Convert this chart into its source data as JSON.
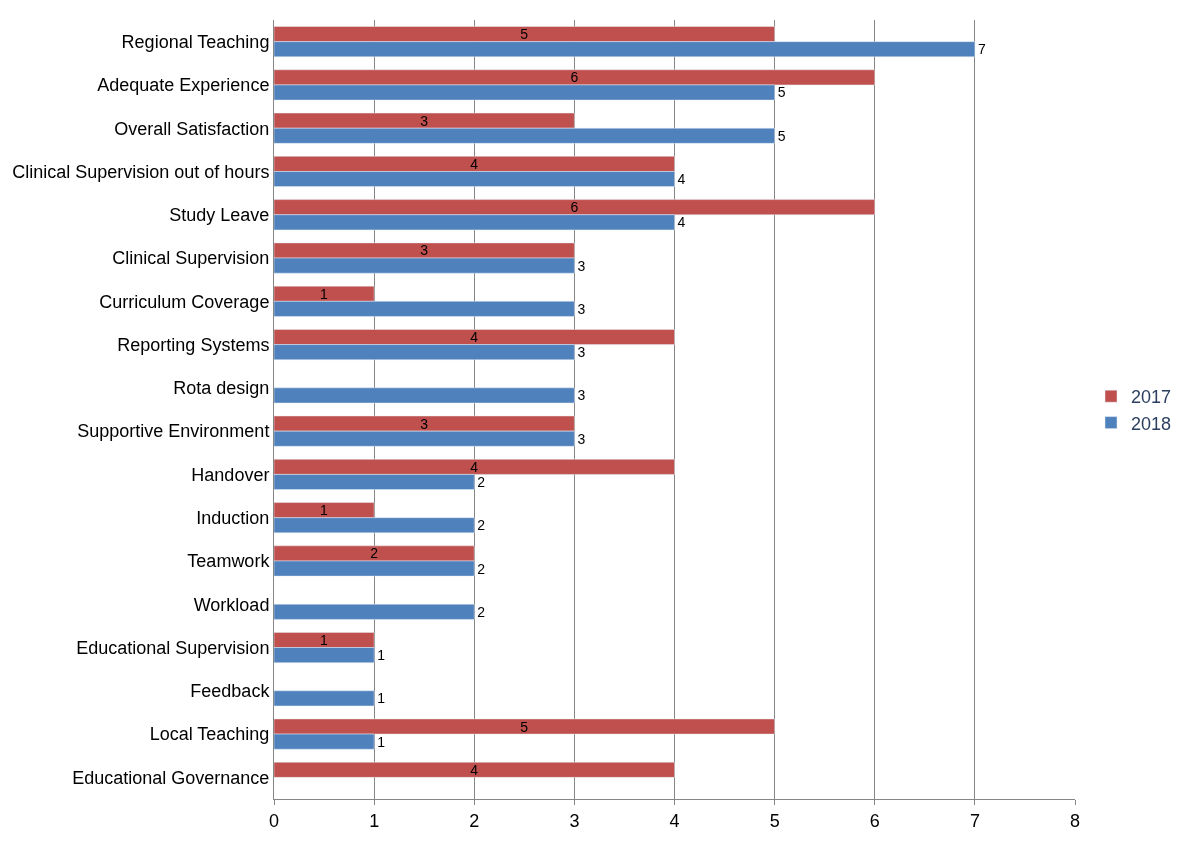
{
  "chart_data": {
    "type": "bar",
    "orientation": "horizontal",
    "categories": [
      "Regional Teaching",
      "Adequate Experience",
      "Overall Satisfaction",
      "Clinical Supervision out of hours",
      "Study Leave",
      "Clinical Supervision",
      "Curriculum Coverage",
      "Reporting Systems",
      "Rota design",
      "Supportive Environment",
      "Handover",
      "Induction",
      "Teamwork",
      "Workload",
      "Educational Supervision",
      "Feedback",
      "Local Teaching",
      "Educational Governance"
    ],
    "series": [
      {
        "name": "2017",
        "color": "#c0504d",
        "values": [
          5,
          6,
          3,
          4,
          6,
          3,
          1,
          4,
          null,
          3,
          4,
          1,
          2,
          null,
          1,
          null,
          5,
          4
        ]
      },
      {
        "name": "2018",
        "color": "#4f81bd",
        "values": [
          7,
          5,
          5,
          4,
          4,
          3,
          3,
          3,
          3,
          3,
          2,
          2,
          2,
          2,
          1,
          1,
          1,
          null
        ]
      }
    ],
    "xlim": [
      0,
      8
    ],
    "xticks": [
      0,
      1,
      2,
      3,
      4,
      5,
      6,
      7,
      8
    ],
    "grid": "x",
    "legend": "right",
    "data_labels": true
  }
}
